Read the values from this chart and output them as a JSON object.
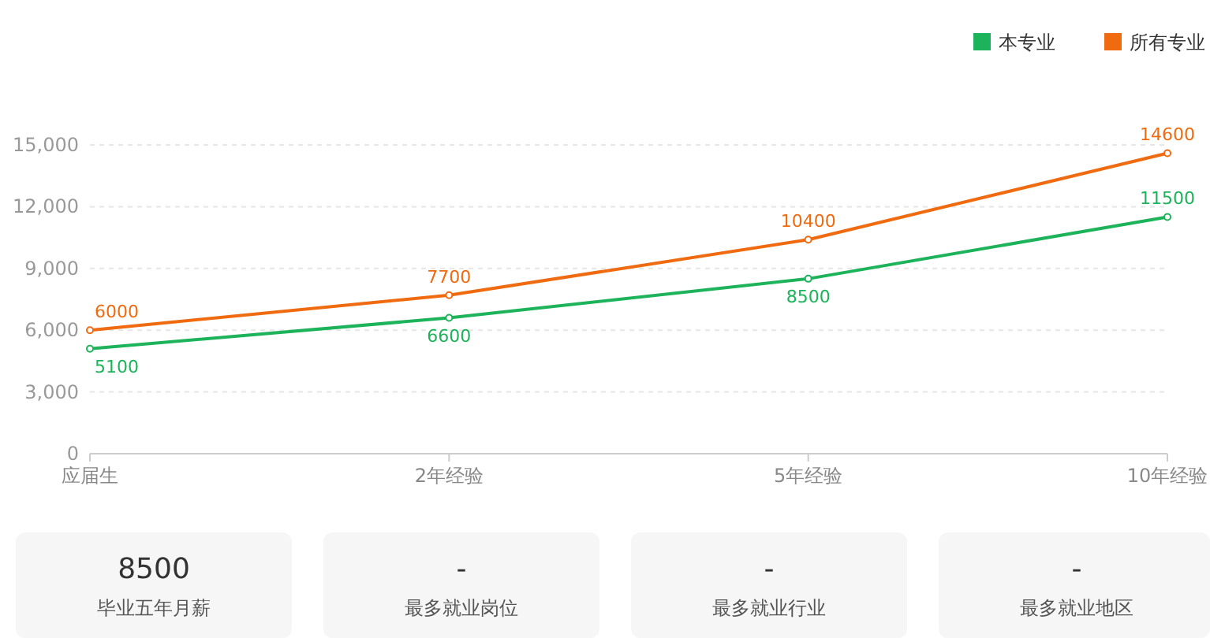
{
  "chart_data": [
    {
      "type": "line",
      "categories": [
        "应届生",
        "2年经验",
        "5年经验",
        "10年经验"
      ],
      "series": [
        {
          "name": "本专业",
          "color": "#1db35a",
          "values": [
            5100,
            6600,
            8500,
            11500
          ]
        },
        {
          "name": "所有专业",
          "color": "#f06a0f",
          "values": [
            6000,
            7700,
            10400,
            14600
          ]
        }
      ],
      "ylim": [
        0,
        15000
      ],
      "yticks": [
        0,
        {
          "value": 3000,
          "label": "3,000"
        },
        {
          "value": 6000,
          "label": "6,000"
        },
        {
          "value": 9000,
          "label": "9,000"
        },
        {
          "value": 12000,
          "label": "12,000"
        },
        {
          "value": 15000,
          "label": "15,000"
        }
      ],
      "grid": "y",
      "legend": "top right",
      "marker": "circle",
      "data_labels": true
    },
    {
      "type": "other",
      "annotations": [
        "8500",
        "毕业五年月薪",
        "-",
        "最多就业岗位",
        "-",
        "最多就业行业",
        "-",
        "最多就业地区"
      ]
    }
  ]
}
